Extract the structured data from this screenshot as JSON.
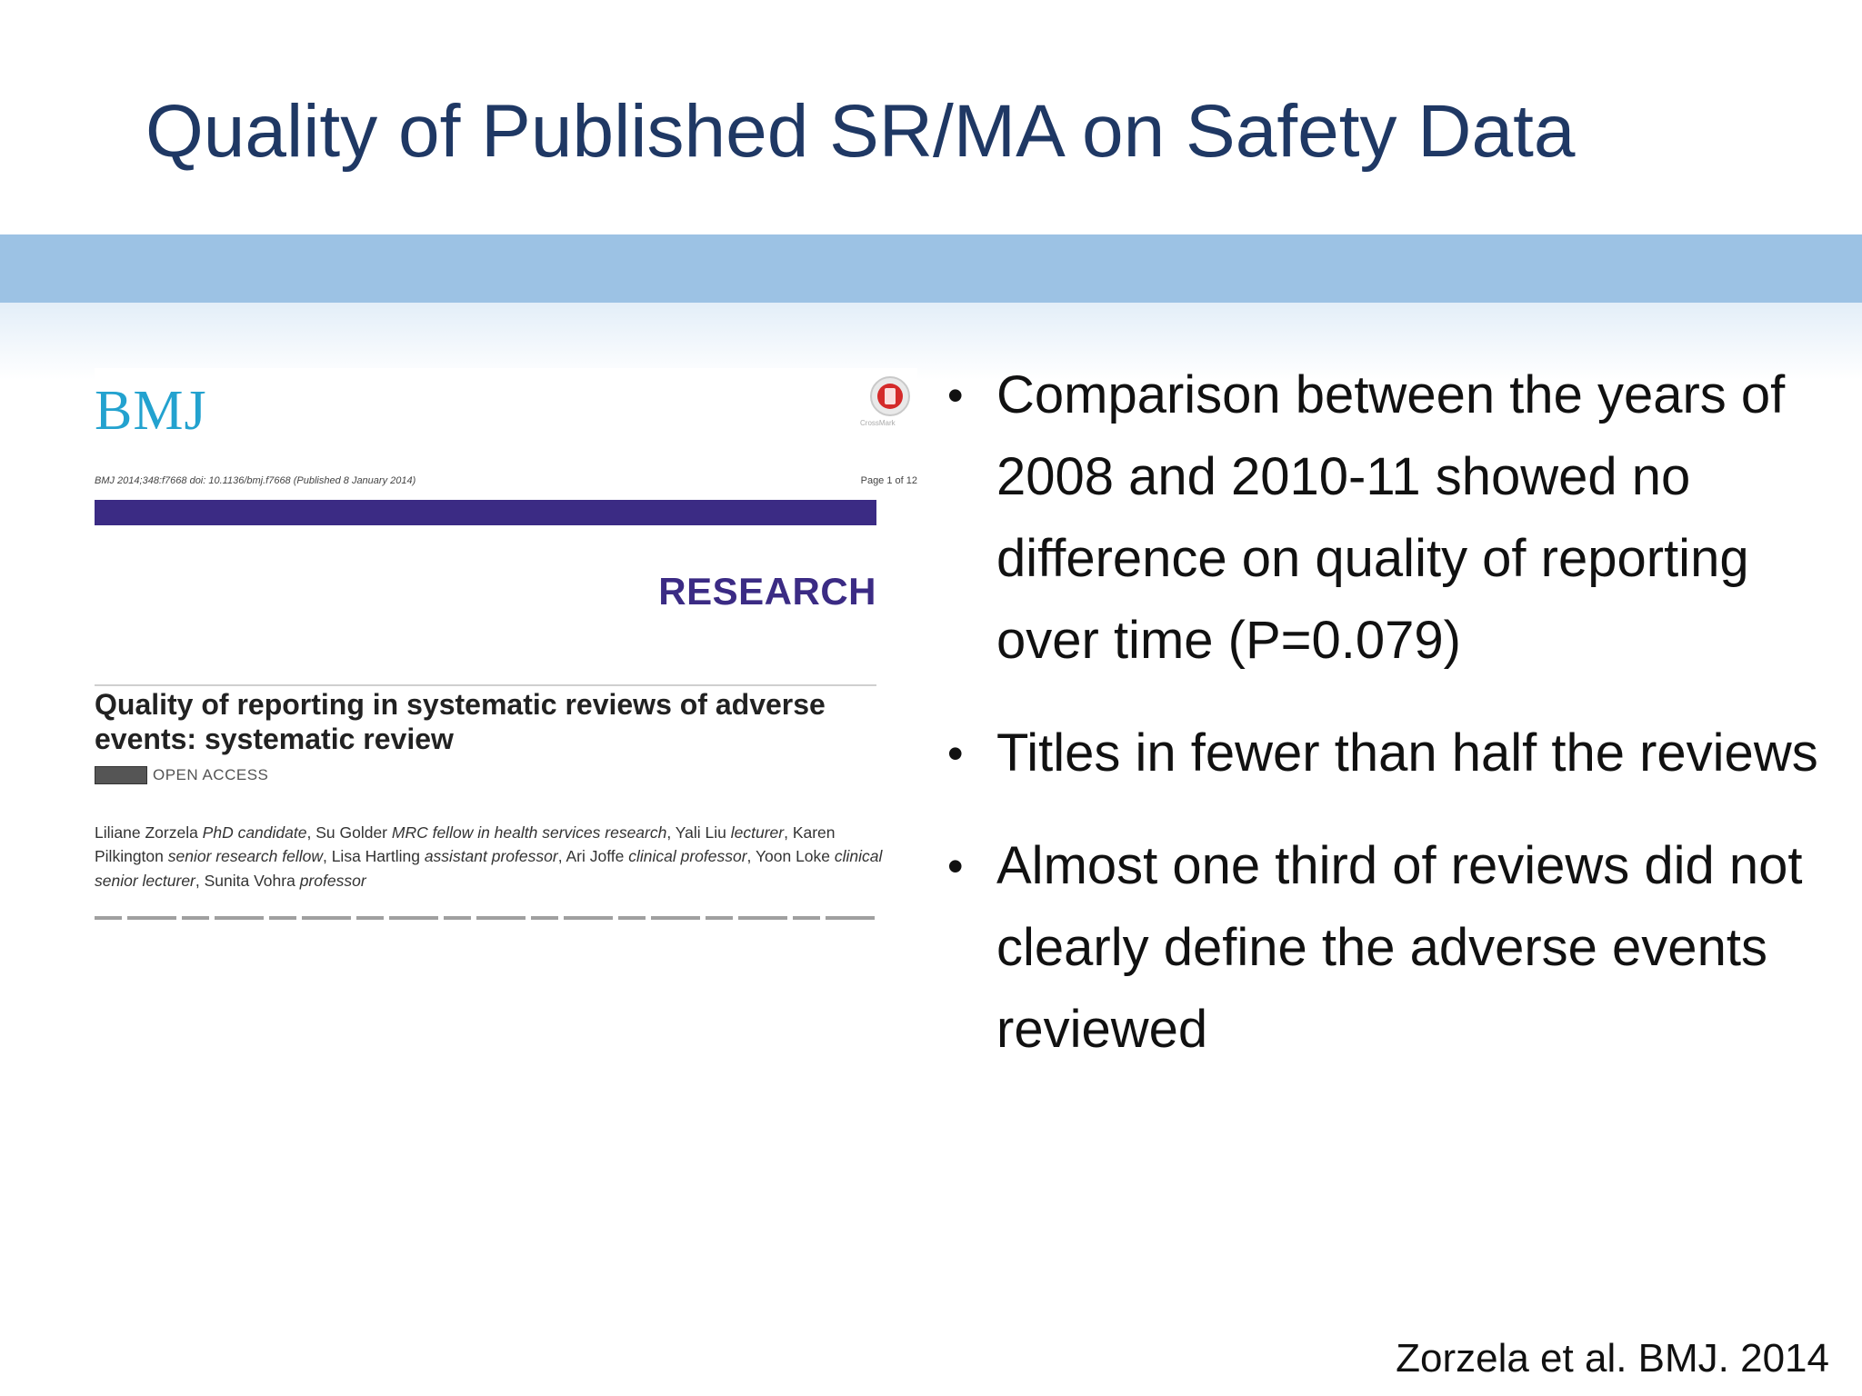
{
  "slide": {
    "title": "Quality of Published SR/MA on Safety Data",
    "bullets": [
      "Comparison between the years of 2008 and 2010-11 showed no difference on quality of reporting over time (P=0.079)",
      "Titles in fewer than half the reviews",
      "Almost one third of reviews did not clearly define the adverse events reviewed"
    ],
    "source": "Zorzela et al. BMJ. 2014"
  },
  "article": {
    "journal_logo": "BMJ",
    "citation_line": "BMJ 2014;348:f7668 doi: 10.1136/bmj.f7668 (Published 8 January 2014)",
    "page_label": "Page 1 of 12",
    "section_label": "RESEARCH",
    "title": "Quality of reporting in systematic reviews of adverse events: systematic review",
    "open_access_label": "OPEN ACCESS",
    "crossmark_label": "CrossMark",
    "authors": {
      "line1_a": "Liliane Zorzela ",
      "line1_a_role": "PhD candidate",
      "line1_b": ", Su Golder ",
      "line1_b_role": "MRC fellow in health services research",
      "line1_c": ", Yali Liu ",
      "line1_c_role": "lecturer",
      "line2_a": ", Karen Pilkington ",
      "line2_a_role": "senior research fellow",
      "line2_b": ", Lisa Hartling ",
      "line2_b_role": "assistant professor",
      "line2_c": ", Ari Joffe ",
      "line2_c_role": "clinical professor",
      "line3_a": ", Yoon Loke ",
      "line3_a_role": "clinical senior lecturer",
      "line3_b": ", Sunita Vohra ",
      "line3_b_role": "professor"
    }
  },
  "colors": {
    "title": "#1f3864",
    "accent_band": "#9cc2e4",
    "bmj_blue": "#23a2cf",
    "bmj_purple": "#3b2b84"
  },
  "icons": {
    "crossmark": "crossmark-icon",
    "bullet": "bullet-icon",
    "cc_license": "cc-license-icon"
  }
}
